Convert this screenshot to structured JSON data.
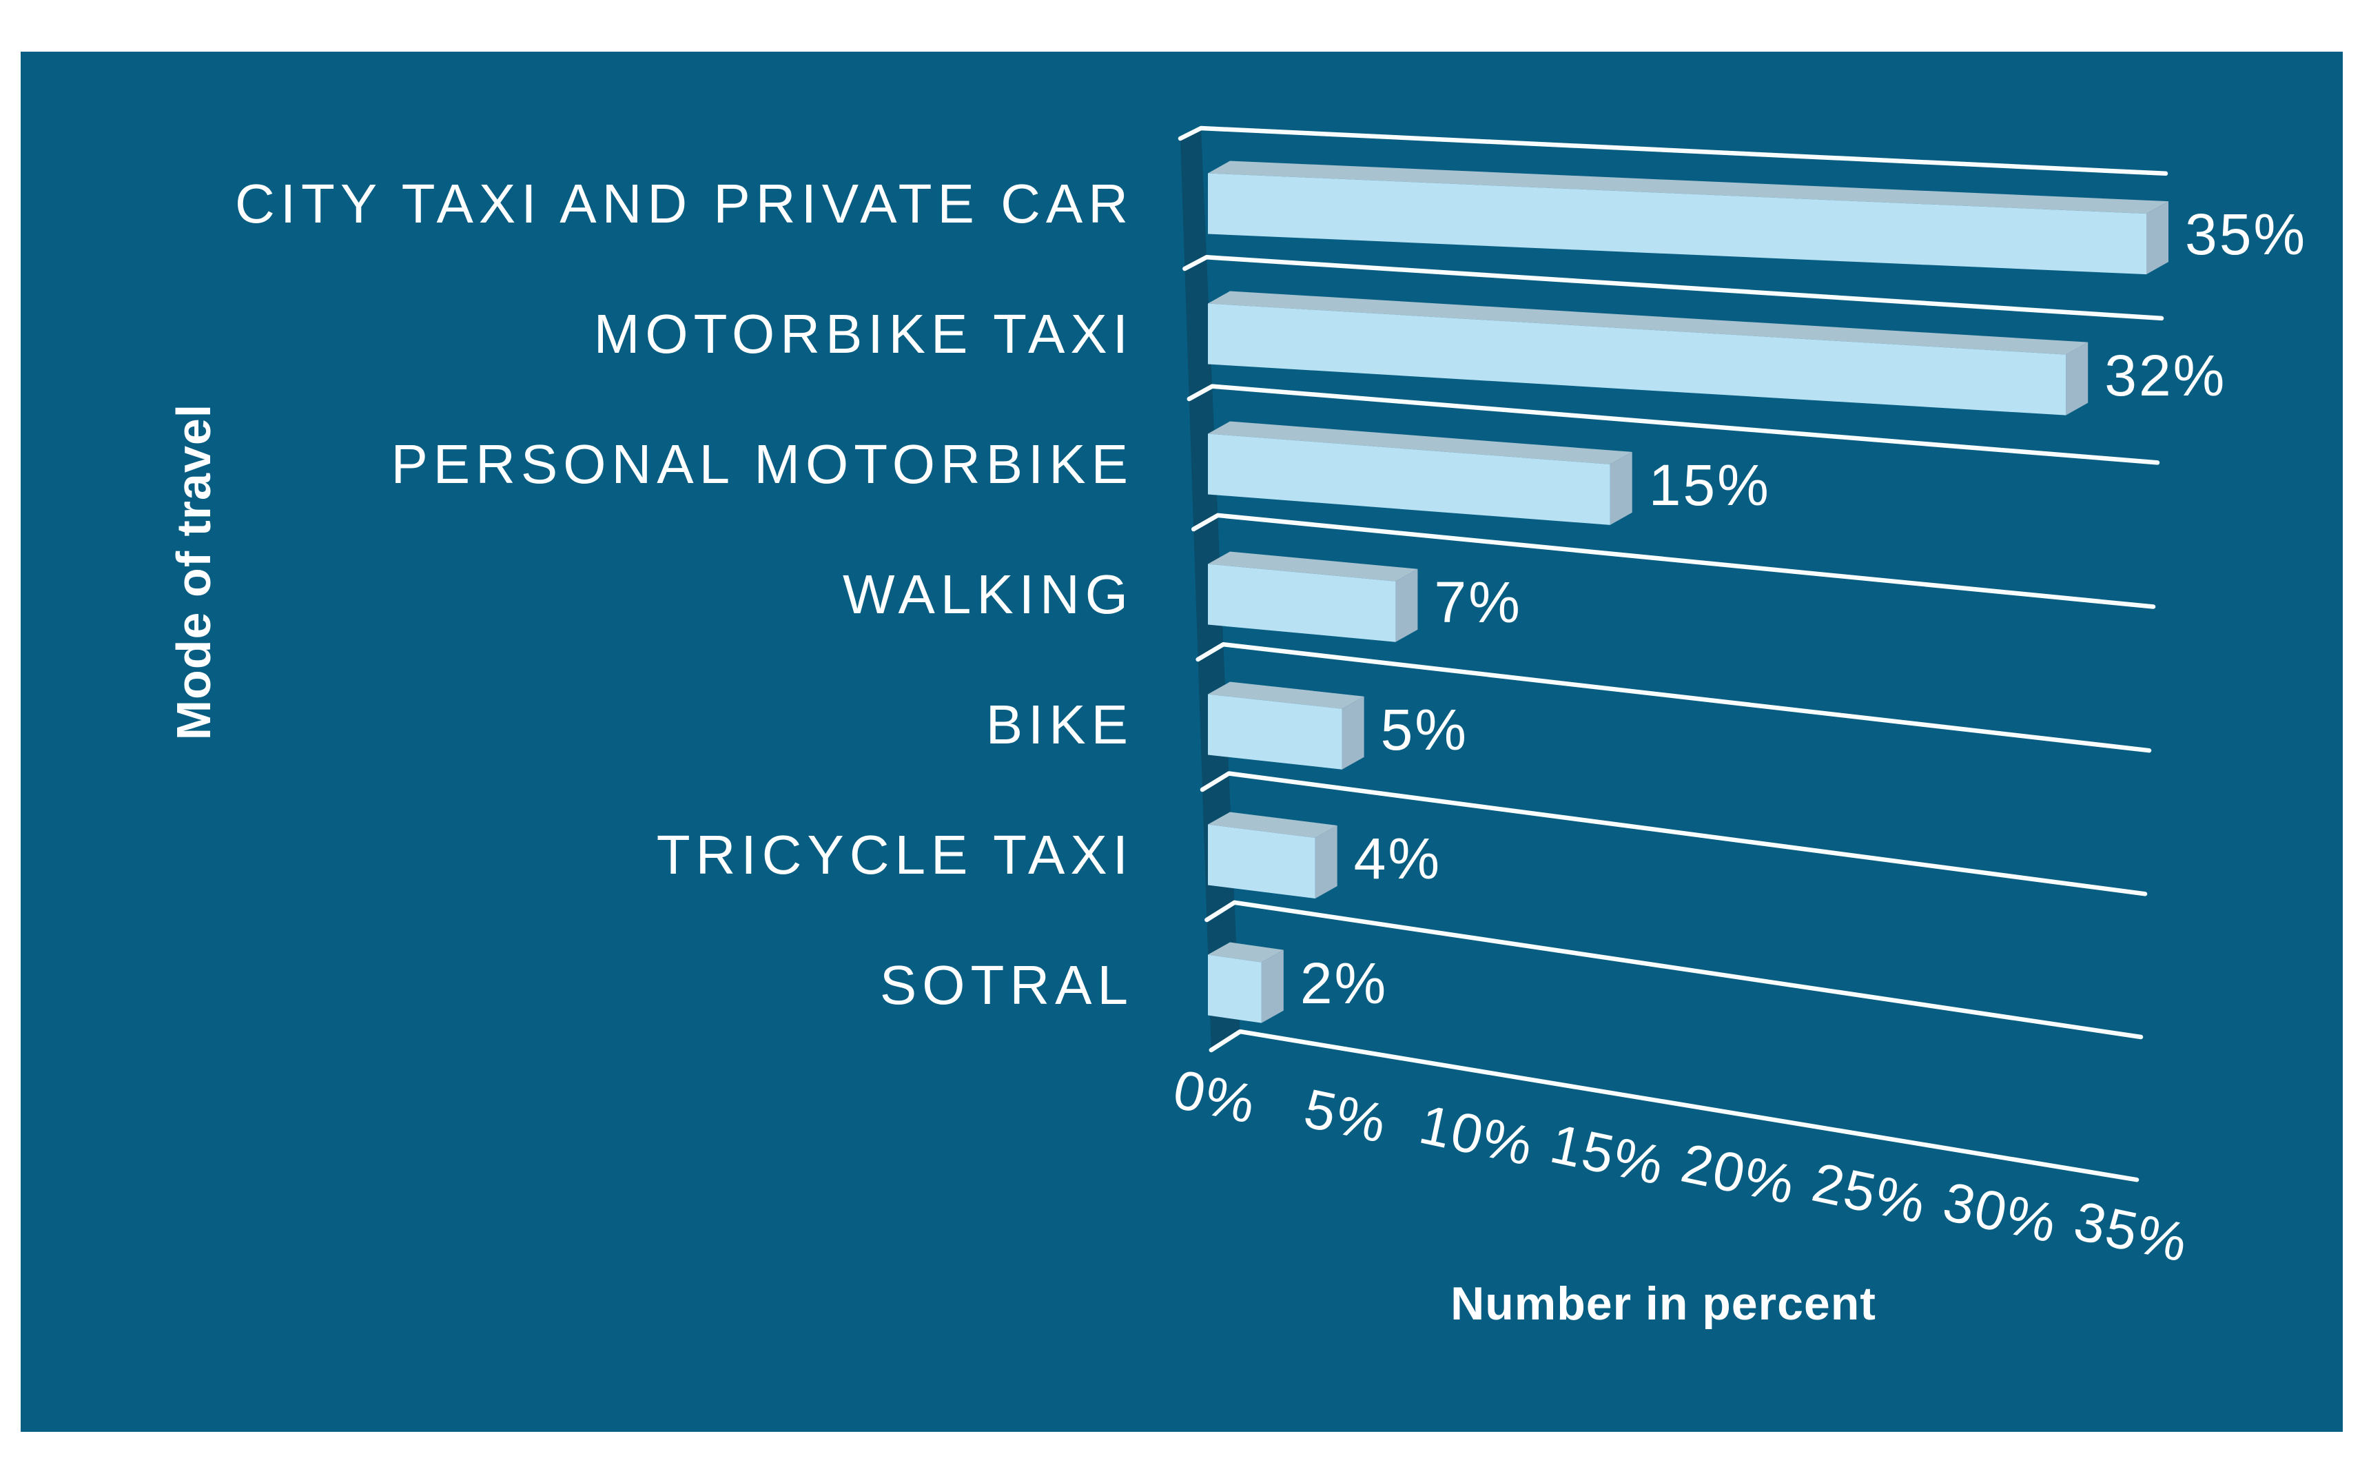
{
  "chart_data": {
    "type": "bar",
    "orientation": "horizontal",
    "style": "3d",
    "title": "",
    "categories": [
      "CITY TAXI AND PRIVATE CAR",
      "MOTORBIKE TAXI",
      "PERSONAL MOTORBIKE",
      "WALKING",
      "BIKE",
      "TRICYCLE TAXI",
      "SOTRAL"
    ],
    "values": [
      35,
      32,
      15,
      7,
      5,
      4,
      2
    ],
    "value_labels": [
      "35%",
      "32%",
      "15%",
      "7%",
      "5%",
      "4%",
      "2%"
    ],
    "x_ticks": [
      "0%",
      "5%",
      "10%",
      "15%",
      "20%",
      "25%",
      "30%",
      "35%"
    ],
    "xlim": [
      0,
      35
    ],
    "xlabel": "Number in percent",
    "ylabel": "Mode of travel",
    "legend": "none",
    "grid": true,
    "colors": {
      "background": "#075E82",
      "bar_front": "#B8E2F4",
      "bar_top": "#A8C2D0",
      "bar_side": "#9EB8CA",
      "wall_shadow": "#0A4C69",
      "grid_line": "#FAFDFE",
      "text": "#FFFFFF"
    }
  }
}
